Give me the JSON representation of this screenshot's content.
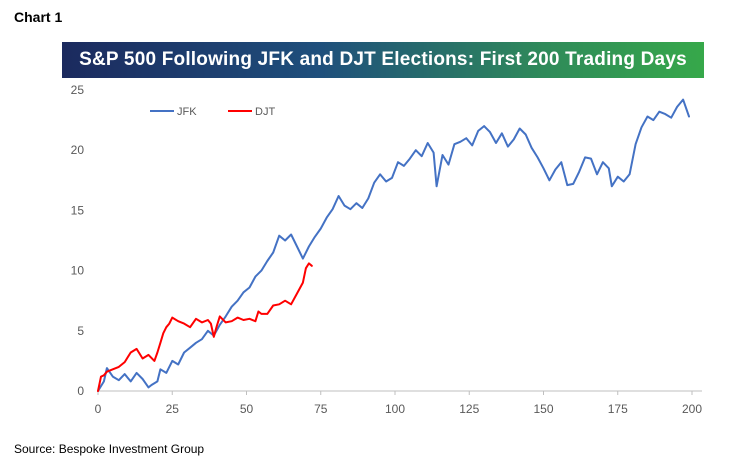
{
  "header": {
    "chart_label": "Chart 1",
    "title": "S&P 500 Following JFK and DJT Elections: First 200 Trading Days"
  },
  "footer": {
    "source": "Source: Bespoke Investment Group"
  },
  "colors": {
    "jfk": "#4472c4",
    "djt": "#ff0000",
    "axis": "#bfbfbf"
  },
  "chart_data": {
    "type": "line",
    "title": "S&P 500 Following JFK and DJT Elections: First 200 Trading Days",
    "xlabel": "",
    "ylabel": "",
    "xlim": [
      0,
      200
    ],
    "ylim": [
      0,
      25
    ],
    "x_ticks": [
      0,
      25,
      50,
      75,
      100,
      125,
      150,
      175,
      200
    ],
    "y_ticks": [
      0,
      5,
      10,
      15,
      20,
      25
    ],
    "grid": false,
    "legend": "top-left",
    "series": [
      {
        "name": "JFK",
        "x": [
          0,
          2,
          3,
          5,
          7,
          9,
          11,
          13,
          15,
          17,
          18,
          20,
          21,
          23,
          25,
          27,
          29,
          31,
          33,
          35,
          37,
          39,
          41,
          43,
          45,
          47,
          49,
          51,
          53,
          55,
          57,
          59,
          61,
          63,
          65,
          67,
          69,
          71,
          73,
          75,
          77,
          79,
          81,
          83,
          85,
          87,
          89,
          91,
          93,
          95,
          97,
          99,
          101,
          103,
          105,
          107,
          109,
          111,
          113,
          114,
          116,
          118,
          120,
          122,
          124,
          126,
          128,
          130,
          132,
          134,
          136,
          138,
          140,
          142,
          144,
          146,
          148,
          150,
          152,
          154,
          156,
          158,
          160,
          162,
          164,
          166,
          168,
          170,
          172,
          173,
          175,
          177,
          179,
          181,
          183,
          185,
          187,
          189,
          191,
          193,
          195,
          197,
          199
        ],
        "y": [
          0,
          0.8,
          1.9,
          1.2,
          0.9,
          1.4,
          0.8,
          1.5,
          1.0,
          0.3,
          0.5,
          0.8,
          1.8,
          1.5,
          2.5,
          2.2,
          3.2,
          3.6,
          4.0,
          4.3,
          5.0,
          4.6,
          5.5,
          6.2,
          7.0,
          7.5,
          8.2,
          8.6,
          9.5,
          10.0,
          10.8,
          11.5,
          12.9,
          12.5,
          13.0,
          12.0,
          11.0,
          12.0,
          12.8,
          13.5,
          14.4,
          15.1,
          16.2,
          15.4,
          15.1,
          15.6,
          15.2,
          16.0,
          17.3,
          18.0,
          17.4,
          17.7,
          19.0,
          18.7,
          19.3,
          20.0,
          19.5,
          20.6,
          19.8,
          17.0,
          19.6,
          18.8,
          20.5,
          20.7,
          21.0,
          20.4,
          21.6,
          22.0,
          21.5,
          20.6,
          21.4,
          20.3,
          20.9,
          21.8,
          21.3,
          20.2,
          19.4,
          18.5,
          17.5,
          18.4,
          19.0,
          17.1,
          17.2,
          18.2,
          19.4,
          19.3,
          18.0,
          19.0,
          18.5,
          17.0,
          17.8,
          17.4,
          18.0,
          20.5,
          21.9,
          22.8,
          22.5,
          23.2,
          23.0,
          22.7,
          23.6,
          24.2,
          22.8
        ]
      },
      {
        "name": "DJT",
        "x": [
          0,
          1,
          2,
          3,
          5,
          7,
          9,
          11,
          13,
          15,
          17,
          19,
          20,
          21,
          22,
          23,
          24,
          25,
          27,
          29,
          31,
          33,
          35,
          37,
          38,
          39,
          40,
          41,
          43,
          45,
          47,
          49,
          51,
          53,
          54,
          55,
          57,
          59,
          61,
          63,
          65,
          67,
          69,
          70,
          71,
          72
        ],
        "y": [
          0,
          1.2,
          1.3,
          1.6,
          1.8,
          2.0,
          2.4,
          3.2,
          3.5,
          2.7,
          3.0,
          2.5,
          3.2,
          4.0,
          4.8,
          5.3,
          5.6,
          6.1,
          5.8,
          5.6,
          5.3,
          6.0,
          5.7,
          5.9,
          5.6,
          4.5,
          5.4,
          6.2,
          5.7,
          5.8,
          6.1,
          5.9,
          6.0,
          5.8,
          6.6,
          6.4,
          6.4,
          7.1,
          7.2,
          7.5,
          7.2,
          8.1,
          9.0,
          10.2,
          10.6,
          10.4
        ]
      }
    ]
  }
}
